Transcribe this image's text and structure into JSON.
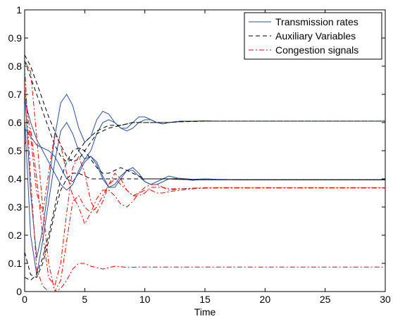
{
  "chart_data": {
    "type": "line",
    "title": "",
    "xlabel": "Time",
    "ylabel": "",
    "xlim": [
      0,
      30
    ],
    "ylim": [
      0,
      1
    ],
    "xticks": [
      "0",
      "5",
      "10",
      "15",
      "20",
      "25",
      "30"
    ],
    "yticks": [
      "0",
      "0.1",
      "0.2",
      "0.3",
      "0.4",
      "0.5",
      "0.6",
      "0.7",
      "0.8",
      "0.9",
      "1"
    ],
    "grid": false,
    "legend_position": "top-right",
    "legend": [
      {
        "label": "Transmission rates",
        "color": "#2b4f9e",
        "style": "solid"
      },
      {
        "label": "Auxiliary Variables",
        "color": "#000000",
        "style": "dashed"
      },
      {
        "label": "Congestion signals",
        "color": "#ff0000",
        "style": "dashdot"
      }
    ],
    "series": [
      {
        "group": "Transmission rates",
        "x": [
          0,
          0.5,
          1,
          1.5,
          2,
          2.5,
          3,
          3.5,
          4,
          4.5,
          5,
          5.5,
          6,
          6.5,
          7,
          7.5,
          8,
          8.5,
          9,
          9.5,
          10,
          10.5,
          11,
          11.5,
          12,
          13,
          14,
          15,
          16,
          18,
          20,
          25,
          30
        ],
        "values": [
          0.72,
          0.35,
          0.12,
          0.22,
          0.38,
          0.55,
          0.67,
          0.7,
          0.66,
          0.58,
          0.53,
          0.55,
          0.61,
          0.64,
          0.63,
          0.6,
          0.58,
          0.58,
          0.6,
          0.62,
          0.62,
          0.61,
          0.6,
          0.595,
          0.6,
          0.605,
          0.605,
          0.606,
          0.605,
          0.605,
          0.605,
          0.605,
          0.605
        ]
      },
      {
        "group": "Transmission rates",
        "x": [
          0,
          0.5,
          1,
          1.5,
          2,
          2.5,
          3,
          3.5,
          4,
          4.5,
          5,
          5.5,
          6,
          6.5,
          7,
          7.5,
          8,
          8.5,
          9,
          9.5,
          10,
          10.5,
          11,
          11.5,
          12,
          13,
          14,
          15,
          16,
          18,
          20,
          25,
          30
        ],
        "values": [
          0.62,
          0.2,
          0.06,
          0.18,
          0.32,
          0.46,
          0.57,
          0.6,
          0.56,
          0.5,
          0.47,
          0.5,
          0.56,
          0.6,
          0.61,
          0.6,
          0.58,
          0.57,
          0.58,
          0.6,
          0.61,
          0.61,
          0.6,
          0.6,
          0.6,
          0.605,
          0.605,
          0.605,
          0.605,
          0.605,
          0.605,
          0.605,
          0.605
        ]
      },
      {
        "group": "Transmission rates",
        "x": [
          0,
          0.5,
          1,
          1.5,
          2,
          2.5,
          3,
          3.5,
          4,
          4.5,
          5,
          5.5,
          6,
          6.5,
          7,
          7.5,
          8,
          8.5,
          9,
          9.5,
          10,
          10.5,
          11,
          11.5,
          12,
          13,
          14,
          15,
          16,
          18,
          20,
          25,
          30
        ],
        "values": [
          0.58,
          0.55,
          0.52,
          0.51,
          0.5,
          0.48,
          0.44,
          0.4,
          0.39,
          0.42,
          0.46,
          0.48,
          0.45,
          0.4,
          0.37,
          0.38,
          0.41,
          0.43,
          0.43,
          0.41,
          0.39,
          0.38,
          0.39,
          0.4,
          0.41,
          0.4,
          0.395,
          0.4,
          0.398,
          0.397,
          0.397,
          0.397,
          0.397
        ]
      },
      {
        "group": "Transmission rates",
        "x": [
          0,
          0.5,
          1,
          1.5,
          2,
          2.5,
          3,
          3.5,
          4,
          4.5,
          5,
          5.5,
          6,
          6.5,
          7,
          7.5,
          8,
          8.5,
          9,
          9.5,
          10,
          10.5,
          11,
          11.5,
          12,
          13,
          14,
          15,
          16,
          18,
          20,
          25,
          30
        ],
        "values": [
          0.68,
          0.6,
          0.54,
          0.5,
          0.46,
          0.42,
          0.38,
          0.36,
          0.38,
          0.43,
          0.47,
          0.48,
          0.46,
          0.41,
          0.37,
          0.37,
          0.4,
          0.43,
          0.44,
          0.42,
          0.39,
          0.38,
          0.38,
          0.39,
          0.4,
          0.402,
          0.398,
          0.4,
          0.398,
          0.397,
          0.397,
          0.397,
          0.397
        ]
      },
      {
        "group": "Auxiliary Variables",
        "x": [
          0,
          0.5,
          1,
          1.5,
          2,
          2.5,
          3,
          3.5,
          4,
          4.5,
          5,
          5.5,
          6,
          6.5,
          7,
          7.5,
          8,
          8.5,
          9,
          9.5,
          10,
          10.5,
          11,
          11.5,
          12,
          13,
          14,
          15,
          16,
          18,
          20,
          25,
          30
        ],
        "values": [
          0.84,
          0.8,
          0.74,
          0.68,
          0.62,
          0.57,
          0.52,
          0.48,
          0.46,
          0.47,
          0.5,
          0.53,
          0.56,
          0.57,
          0.58,
          0.585,
          0.59,
          0.595,
          0.6,
          0.6,
          0.6,
          0.6,
          0.6,
          0.6,
          0.6,
          0.603,
          0.604,
          0.605,
          0.605,
          0.605,
          0.605,
          0.605,
          0.605
        ]
      },
      {
        "group": "Auxiliary Variables",
        "x": [
          0,
          0.5,
          1,
          1.5,
          2,
          2.5,
          3,
          3.5,
          4,
          4.5,
          5,
          5.5,
          6,
          6.5,
          7,
          7.5,
          8,
          8.5,
          9,
          9.5,
          10,
          10.5,
          11,
          11.5,
          12,
          13,
          14,
          15,
          16,
          18,
          20,
          25,
          30
        ],
        "values": [
          0.82,
          0.76,
          0.7,
          0.64,
          0.58,
          0.52,
          0.48,
          0.46,
          0.47,
          0.5,
          0.53,
          0.55,
          0.57,
          0.58,
          0.59,
          0.59,
          0.59,
          0.595,
          0.6,
          0.6,
          0.6,
          0.6,
          0.6,
          0.6,
          0.6,
          0.603,
          0.604,
          0.605,
          0.605,
          0.605,
          0.605,
          0.605,
          0.605
        ]
      },
      {
        "group": "Auxiliary Variables",
        "x": [
          0,
          0.5,
          1,
          1.5,
          2,
          2.5,
          3,
          3.5,
          4,
          4.5,
          5,
          5.5,
          6,
          6.5,
          7,
          7.5,
          8,
          8.5,
          9,
          9.5,
          10,
          10.5,
          11,
          11.5,
          12,
          13,
          14,
          15,
          16,
          18,
          20,
          25,
          30
        ],
        "values": [
          0.14,
          0.06,
          0.05,
          0.1,
          0.18,
          0.28,
          0.36,
          0.4,
          0.42,
          0.42,
          0.41,
          0.4,
          0.4,
          0.4,
          0.4,
          0.4,
          0.4,
          0.4,
          0.4,
          0.4,
          0.4,
          0.4,
          0.4,
          0.4,
          0.4,
          0.398,
          0.397,
          0.397,
          0.397,
          0.397,
          0.397,
          0.397,
          0.397
        ]
      },
      {
        "group": "Auxiliary Variables",
        "x": [
          0,
          0.5,
          1,
          1.5,
          2,
          2.5,
          3,
          3.5,
          4,
          4.5,
          5,
          5.5,
          6,
          6.5,
          7,
          7.5,
          8,
          8.5,
          9,
          9.5,
          10,
          10.5,
          11,
          11.5,
          12,
          13,
          14,
          15,
          16,
          18,
          20,
          25,
          30
        ],
        "values": [
          0.05,
          0.04,
          0.06,
          0.12,
          0.2,
          0.3,
          0.4,
          0.46,
          0.5,
          0.51,
          0.5,
          0.47,
          0.44,
          0.42,
          0.42,
          0.43,
          0.44,
          0.43,
          0.42,
          0.41,
          0.4,
          0.4,
          0.4,
          0.4,
          0.4,
          0.398,
          0.397,
          0.397,
          0.397,
          0.397,
          0.397,
          0.397,
          0.397
        ]
      },
      {
        "group": "Congestion signals",
        "x": [
          0,
          0.5,
          1,
          1.5,
          2,
          2.5,
          3,
          3.5,
          4,
          4.5,
          5,
          5.5,
          6,
          6.5,
          7,
          7.5,
          8,
          8.5,
          9,
          9.5,
          10,
          10.5,
          11,
          11.5,
          12,
          13,
          14,
          15,
          16,
          18,
          20,
          25,
          30
        ],
        "values": [
          0.52,
          0.58,
          0.4,
          0.2,
          0.05,
          0.02,
          0.1,
          0.28,
          0.44,
          0.48,
          0.42,
          0.32,
          0.28,
          0.32,
          0.38,
          0.42,
          0.4,
          0.36,
          0.34,
          0.35,
          0.37,
          0.38,
          0.38,
          0.37,
          0.365,
          0.365,
          0.367,
          0.368,
          0.368,
          0.368,
          0.368,
          0.368,
          0.368
        ]
      },
      {
        "group": "Congestion signals",
        "x": [
          0,
          0.5,
          1,
          1.5,
          2,
          2.5,
          3,
          3.5,
          4,
          4.5,
          5,
          5.5,
          6,
          6.5,
          7,
          7.5,
          8,
          8.5,
          9,
          9.5,
          10,
          10.5,
          11,
          11.5,
          12,
          13,
          14,
          15,
          16,
          18,
          20,
          25,
          30
        ],
        "values": [
          0.82,
          0.78,
          0.55,
          0.3,
          0.1,
          0.0,
          0.04,
          0.18,
          0.32,
          0.34,
          0.3,
          0.28,
          0.3,
          0.34,
          0.38,
          0.4,
          0.38,
          0.36,
          0.34,
          0.34,
          0.35,
          0.37,
          0.37,
          0.37,
          0.36,
          0.365,
          0.367,
          0.368,
          0.368,
          0.368,
          0.368,
          0.368,
          0.368
        ]
      },
      {
        "group": "Congestion signals",
        "x": [
          0,
          0.5,
          1,
          1.5,
          2,
          2.5,
          3,
          3.5,
          4,
          4.5,
          5,
          5.5,
          6,
          6.5,
          7,
          7.5,
          8,
          8.5,
          9,
          9.5,
          10,
          10.5,
          11,
          11.5,
          12,
          13,
          14,
          15,
          16,
          18,
          20,
          25,
          30
        ],
        "values": [
          0.72,
          0.55,
          0.35,
          0.28,
          0.42,
          0.56,
          0.52,
          0.42,
          0.34,
          0.3,
          0.24,
          0.28,
          0.33,
          0.36,
          0.36,
          0.34,
          0.31,
          0.3,
          0.32,
          0.35,
          0.36,
          0.36,
          0.35,
          0.35,
          0.355,
          0.36,
          0.365,
          0.367,
          0.368,
          0.368,
          0.368,
          0.368,
          0.368
        ]
      },
      {
        "group": "Congestion signals",
        "x": [
          0,
          0.5,
          1,
          1.5,
          2,
          2.5,
          3,
          3.5,
          4,
          4.5,
          5,
          5.5,
          6,
          6.5,
          7,
          7.5,
          8,
          8.5,
          9,
          9.5,
          10,
          10.5,
          11,
          11.5,
          12,
          13,
          14,
          15,
          16,
          18,
          20,
          25,
          30
        ],
        "values": [
          0.8,
          0.4,
          0.08,
          0.02,
          0.0,
          0.0,
          0.01,
          0.04,
          0.08,
          0.1,
          0.1,
          0.09,
          0.085,
          0.08,
          0.085,
          0.09,
          0.088,
          0.086,
          0.086,
          0.087,
          0.087,
          0.087,
          0.087,
          0.087,
          0.087,
          0.087,
          0.087,
          0.087,
          0.087,
          0.087,
          0.087,
          0.087,
          0.087
        ]
      }
    ]
  }
}
